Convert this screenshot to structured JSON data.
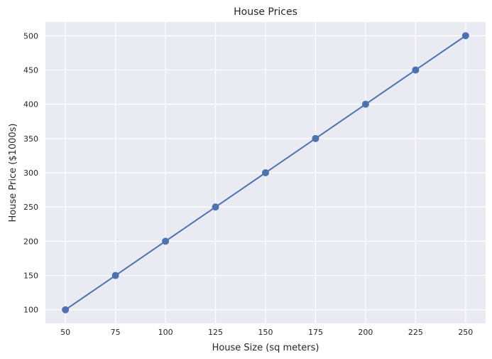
{
  "chart_data": {
    "type": "line",
    "title": "House Prices",
    "xlabel": "House Size (sq meters)",
    "ylabel": "House Price ($1000s)",
    "x": [
      50,
      75,
      100,
      125,
      150,
      175,
      200,
      225,
      250
    ],
    "series": [
      {
        "values": [
          100,
          150,
          200,
          250,
          300,
          350,
          400,
          450,
          500
        ],
        "color": "#4c72b0",
        "marker": "circle"
      }
    ],
    "xlim": [
      40,
      260
    ],
    "ylim": [
      80,
      520
    ],
    "xticks": [
      50,
      75,
      100,
      125,
      150,
      175,
      200,
      225,
      250
    ],
    "yticks": [
      100,
      150,
      200,
      250,
      300,
      350,
      400,
      450,
      500
    ],
    "grid": true,
    "style": {
      "plot_background": "#eaeaf2",
      "grid_color": "#ffffff",
      "text_color": "#262626"
    }
  }
}
